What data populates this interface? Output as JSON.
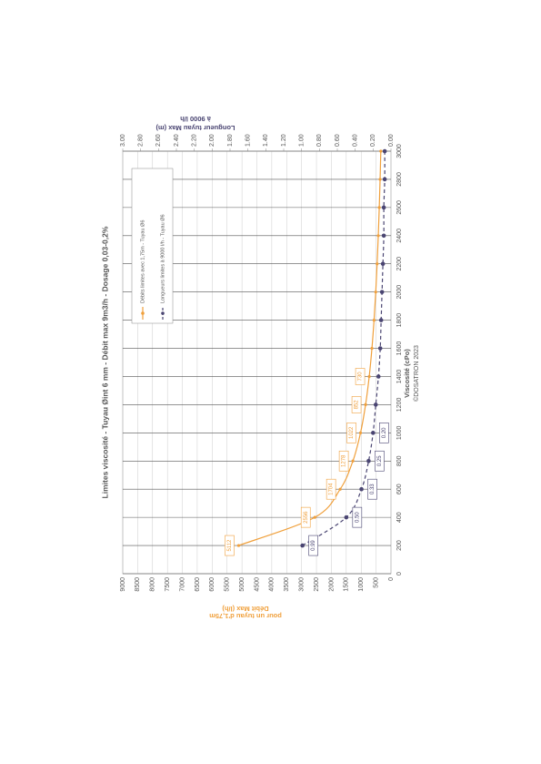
{
  "chart_data": {
    "type": "line",
    "title": "Limites viscosité - Tuyau Øint 6 mm - Débit max 9m3/h - Dosage 0,03-0,2%",
    "x_label": "Viscosité (cPo)",
    "y_label": [
      "Débit Max (l/h)",
      "pour un tuyau d'1,75m"
    ],
    "y2_label": [
      "Longueur tuyau Max (m)",
      "à 9000 l/h"
    ],
    "copyright": "©DOSATRON 2023",
    "x": [
      200,
      400,
      600,
      800,
      1000,
      1200,
      1400,
      1600,
      1800,
      2000,
      2200,
      2400,
      2600,
      2800,
      3000
    ],
    "xlim": [
      0,
      3000
    ],
    "xticks": [
      0,
      200,
      400,
      600,
      800,
      1000,
      1200,
      1400,
      1600,
      1800,
      2000,
      2200,
      2400,
      2600,
      2800,
      3000
    ],
    "ylim": [
      0,
      9000
    ],
    "yticks": [
      0,
      500,
      1000,
      1500,
      2000,
      2500,
      3000,
      3500,
      4000,
      4500,
      5000,
      5500,
      6000,
      6500,
      7000,
      7500,
      8000,
      8500,
      9000
    ],
    "y2lim": [
      0,
      3
    ],
    "y2ticks": [
      {
        "value": 0,
        "label": "0.00"
      },
      {
        "value": 0.2,
        "label": "0.20"
      },
      {
        "value": 0.4,
        "label": "0.40"
      },
      {
        "value": 0.6,
        "label": "0.60"
      },
      {
        "value": 0.8,
        "label": "0.80"
      },
      {
        "value": 1,
        "label": "1.00"
      },
      {
        "value": 1.2,
        "label": "1.20"
      },
      {
        "value": 1.4,
        "label": "1.40"
      },
      {
        "value": 1.6,
        "label": "1.60"
      },
      {
        "value": 1.8,
        "label": "1.80"
      },
      {
        "value": 2,
        "label": "2.00"
      },
      {
        "value": 2.2,
        "label": "2.20"
      },
      {
        "value": 2.4,
        "label": "2.40"
      },
      {
        "value": 2.6,
        "label": "2.60"
      },
      {
        "value": 2.8,
        "label": "2.80"
      },
      {
        "value": 3,
        "label": "3.00"
      }
    ],
    "grid": true,
    "series": [
      {
        "name": "Débits limites avec 1,75m - Tuyau Ø6",
        "color": "#f0a03c",
        "dashed": false,
        "values": [
          5112,
          2556,
          1704,
          1278,
          1022,
          852,
          730,
          639,
          568,
          511,
          465,
          426,
          393,
          365,
          341
        ],
        "value_labels": [
          "5112",
          "2556",
          "1704",
          "1278",
          "1022",
          "852",
          "730",
          null,
          null,
          null,
          null,
          null,
          null,
          null,
          null
        ]
      },
      {
        "name": "Longueurs limites à 9000 l/h - Tuyau Ø6",
        "color": "#4a4572",
        "dashed": true,
        "axis": "y2",
        "values": [
          0.99,
          0.5,
          0.33,
          0.25,
          0.2,
          0.17,
          0.14,
          0.12,
          0.11,
          0.1,
          0.09,
          0.08,
          0.08,
          0.07,
          0.07
        ],
        "value_labels": [
          "0.99",
          "0.50",
          "0.33",
          "0.25",
          "0.20",
          null,
          null,
          null,
          null,
          null,
          null,
          null,
          null,
          null,
          null
        ]
      }
    ]
  }
}
